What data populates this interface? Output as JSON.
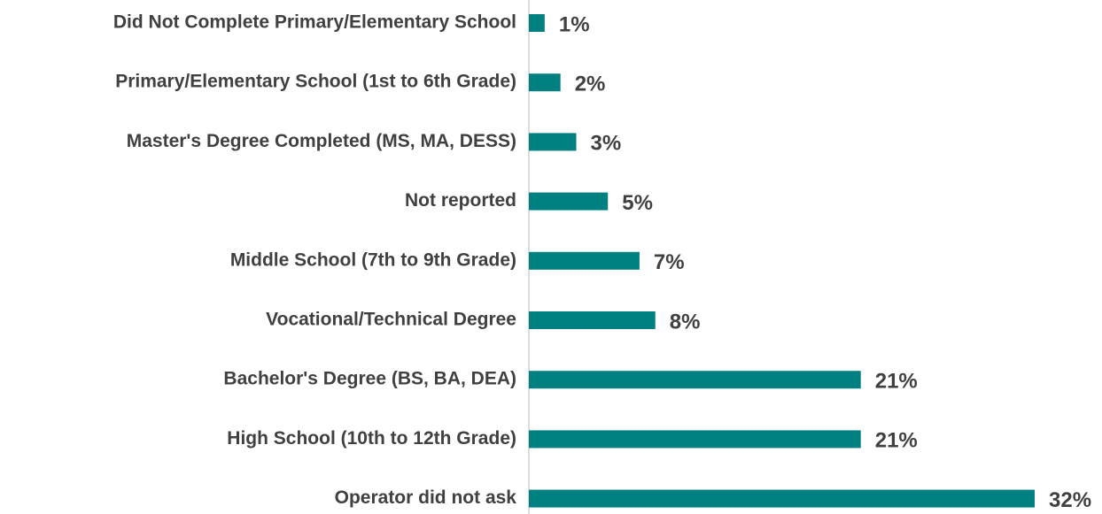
{
  "chart_data": {
    "type": "hbar",
    "categories": [
      "Did Not Complete Primary/Elementary School",
      "Primary/Elementary School (1st to 6th Grade)",
      "Master's Degree Completed (MS, MA, DESS)",
      "Not reported",
      "Middle School (7th to 9th Grade)",
      "Vocational/Technical Degree",
      "Bachelor's Degree (BS, BA, DEA)",
      "High School (10th to 12th Grade)",
      "Operator did not ask"
    ],
    "values": [
      1,
      2,
      3,
      5,
      7,
      8,
      21,
      21,
      32
    ],
    "value_labels": [
      "1%",
      "2%",
      "3%",
      "5%",
      "7%",
      "8%",
      "21%",
      "21%",
      "32%"
    ],
    "color": "#008080"
  }
}
